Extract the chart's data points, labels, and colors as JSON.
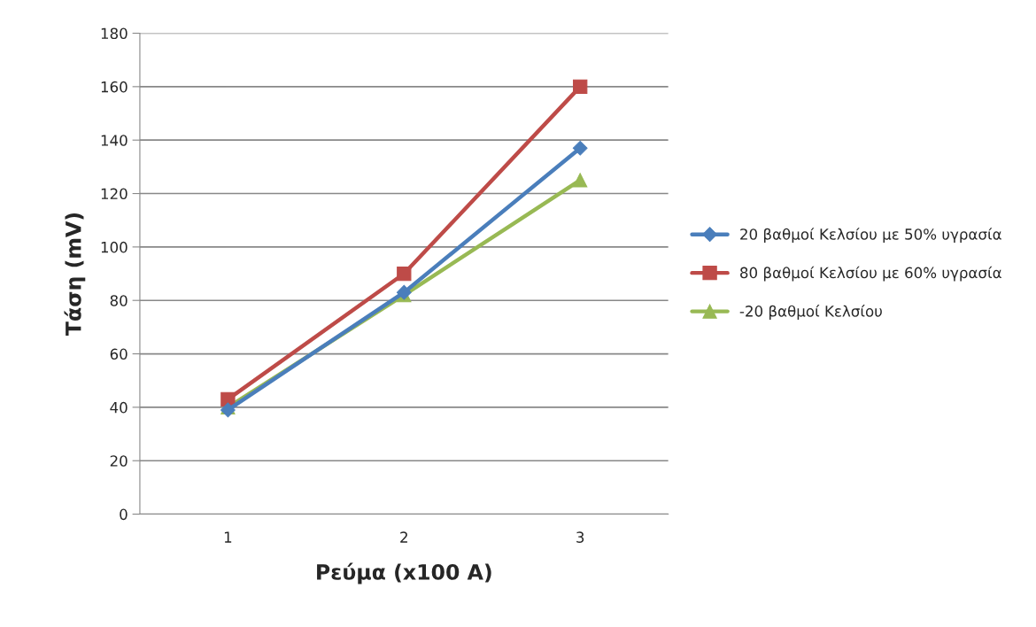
{
  "chart_data": {
    "type": "line",
    "xlabel": "Ρεύμα (x100 A)",
    "ylabel": "Τάση (mV)",
    "categories": [
      "1",
      "2",
      "3"
    ],
    "series": [
      {
        "name": "20 βαθμοί Κελσίου με 50% υγρασία",
        "color": "#4a7ebb",
        "marker": "diamond",
        "values": [
          39,
          83,
          137
        ]
      },
      {
        "name": "80 βαθμοί Κελσίου με 60% υγρασία",
        "color": "#be4b48",
        "marker": "square",
        "values": [
          43,
          90,
          160
        ]
      },
      {
        "name": "-20 βαθμοί Κελσίου",
        "color": "#98b954",
        "marker": "triangle",
        "values": [
          40,
          82,
          125
        ]
      }
    ],
    "ylim": [
      0,
      180
    ],
    "yticks": [
      0,
      20,
      40,
      60,
      80,
      100,
      120,
      140,
      160,
      180
    ],
    "grid": "y",
    "legend": "right",
    "line_style": "solid"
  }
}
